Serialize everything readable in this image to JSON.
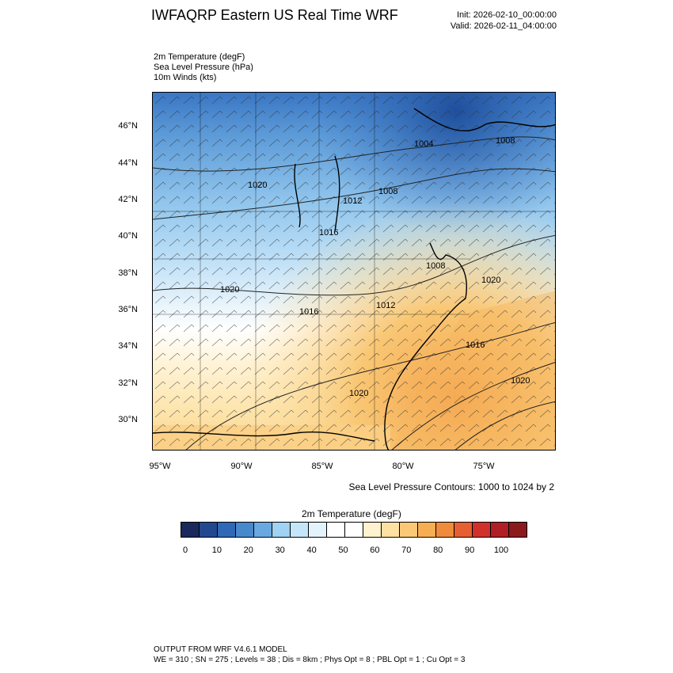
{
  "header": {
    "title": "IWFAQRP Eastern US Real Time WRF",
    "init": "Init: 2026-02-10_00:00:00",
    "valid": "Valid: 2026-02-11_04:00:00"
  },
  "fields": [
    "2m Temperature   (degF)",
    "Sea Level Pressure   (hPa)",
    "10m Winds   (kts)"
  ],
  "map": {
    "lat_labels": [
      "46°N",
      "44°N",
      "42°N",
      "40°N",
      "38°N",
      "36°N",
      "34°N",
      "32°N",
      "30°N"
    ],
    "lon_labels": [
      "95°W",
      "90°W",
      "85°W",
      "80°W",
      "75°W"
    ],
    "contour_labels": [
      "1004",
      "1008",
      "1020",
      "1012",
      "1008",
      "1016",
      "1008",
      "1020",
      "1016",
      "1012",
      "1020",
      "1016",
      "1020",
      "1020"
    ],
    "contour_note": "Sea Level Pressure Contours: 1000 to 1024 by 2"
  },
  "colorbar": {
    "title": "2m Temperature  (degF)",
    "colors": [
      "#19295b",
      "#22488f",
      "#2f68b5",
      "#4889cc",
      "#6aa9e0",
      "#9fd2f3",
      "#c5e6f8",
      "#e3f3fc",
      "#ffffff",
      "#ffffff",
      "#fff2cf",
      "#fde1a3",
      "#fbc878",
      "#f7ae53",
      "#f08b3c",
      "#e55f33",
      "#d2302b",
      "#b11e25",
      "#8b1a1d"
    ],
    "tick_labels": [
      "0",
      "10",
      "20",
      "30",
      "40",
      "50",
      "60",
      "70",
      "80",
      "90",
      "100"
    ]
  },
  "footer": {
    "line1": "OUTPUT FROM WRF V4.6.1 MODEL",
    "line2": "WE = 310 ; SN = 275 ; Levels = 38 ; Dis = 8km ; Phys Opt = 8 ; PBL Opt = 1 ; Cu Opt = 3"
  }
}
